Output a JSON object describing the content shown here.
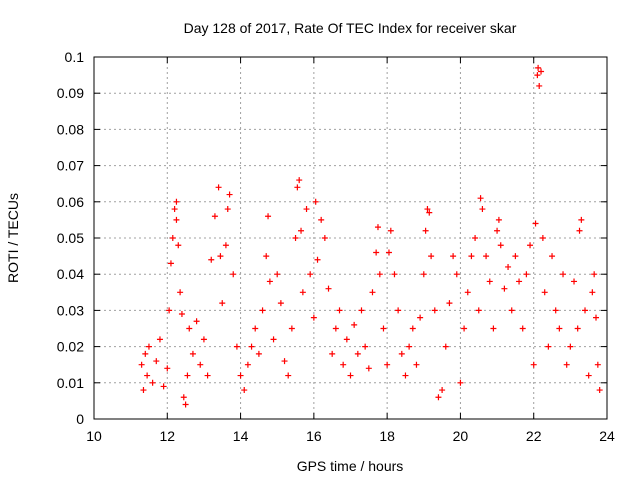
{
  "chart_data": {
    "type": "scatter",
    "title": "Day 128 of 2017, Rate Of TEC Index for receiver skar",
    "xlabel": "GPS time / hours",
    "ylabel": "ROTI / TECUs",
    "xlim": [
      10,
      24
    ],
    "ylim": [
      0,
      0.1
    ],
    "xticks": [
      "10",
      "12",
      "14",
      "16",
      "18",
      "20",
      "22",
      "24"
    ],
    "yticks": [
      "0",
      "0.01",
      "0.02",
      "0.03",
      "0.04",
      "0.05",
      "0.06",
      "0.07",
      "0.08",
      "0.09",
      "0.1"
    ],
    "grid": true,
    "marker": "+",
    "color": "#ff0000",
    "series": [
      {
        "points": [
          [
            11.3,
            0.015
          ],
          [
            11.35,
            0.008
          ],
          [
            11.4,
            0.018
          ],
          [
            11.45,
            0.012
          ],
          [
            11.5,
            0.02
          ],
          [
            11.6,
            0.01
          ],
          [
            11.7,
            0.016
          ],
          [
            11.8,
            0.022
          ],
          [
            11.9,
            0.009
          ],
          [
            12.0,
            0.014
          ],
          [
            12.05,
            0.03
          ],
          [
            12.1,
            0.043
          ],
          [
            12.15,
            0.05
          ],
          [
            12.2,
            0.058
          ],
          [
            12.25,
            0.06
          ],
          [
            12.25,
            0.055
          ],
          [
            12.3,
            0.048
          ],
          [
            12.35,
            0.035
          ],
          [
            12.4,
            0.029
          ],
          [
            12.45,
            0.006
          ],
          [
            12.5,
            0.004
          ],
          [
            12.55,
            0.012
          ],
          [
            12.6,
            0.025
          ],
          [
            12.7,
            0.018
          ],
          [
            12.8,
            0.027
          ],
          [
            12.9,
            0.015
          ],
          [
            13.0,
            0.022
          ],
          [
            13.1,
            0.012
          ],
          [
            13.2,
            0.044
          ],
          [
            13.3,
            0.056
          ],
          [
            13.4,
            0.064
          ],
          [
            13.45,
            0.045
          ],
          [
            13.5,
            0.032
          ],
          [
            13.6,
            0.048
          ],
          [
            13.65,
            0.058
          ],
          [
            13.7,
            0.062
          ],
          [
            13.8,
            0.04
          ],
          [
            13.9,
            0.02
          ],
          [
            14.0,
            0.012
          ],
          [
            14.1,
            0.008
          ],
          [
            14.2,
            0.015
          ],
          [
            14.3,
            0.02
          ],
          [
            14.4,
            0.025
          ],
          [
            14.5,
            0.018
          ],
          [
            14.6,
            0.03
          ],
          [
            14.7,
            0.045
          ],
          [
            14.75,
            0.056
          ],
          [
            14.8,
            0.038
          ],
          [
            14.9,
            0.022
          ],
          [
            15.0,
            0.04
          ],
          [
            15.1,
            0.032
          ],
          [
            15.2,
            0.016
          ],
          [
            15.3,
            0.012
          ],
          [
            15.4,
            0.025
          ],
          [
            15.5,
            0.05
          ],
          [
            15.55,
            0.064
          ],
          [
            15.6,
            0.066
          ],
          [
            15.65,
            0.052
          ],
          [
            15.7,
            0.035
          ],
          [
            15.8,
            0.058
          ],
          [
            15.9,
            0.04
          ],
          [
            16.0,
            0.028
          ],
          [
            16.05,
            0.06
          ],
          [
            16.1,
            0.044
          ],
          [
            16.2,
            0.055
          ],
          [
            16.3,
            0.05
          ],
          [
            16.4,
            0.036
          ],
          [
            16.5,
            0.018
          ],
          [
            16.6,
            0.025
          ],
          [
            16.7,
            0.03
          ],
          [
            16.8,
            0.015
          ],
          [
            16.9,
            0.022
          ],
          [
            17.0,
            0.012
          ],
          [
            17.1,
            0.026
          ],
          [
            17.2,
            0.018
          ],
          [
            17.3,
            0.03
          ],
          [
            17.4,
            0.02
          ],
          [
            17.5,
            0.014
          ],
          [
            17.6,
            0.035
          ],
          [
            17.7,
            0.046
          ],
          [
            17.75,
            0.053
          ],
          [
            17.8,
            0.04
          ],
          [
            17.9,
            0.025
          ],
          [
            18.0,
            0.015
          ],
          [
            18.05,
            0.046
          ],
          [
            18.1,
            0.052
          ],
          [
            18.2,
            0.04
          ],
          [
            18.3,
            0.03
          ],
          [
            18.4,
            0.018
          ],
          [
            18.5,
            0.012
          ],
          [
            18.6,
            0.02
          ],
          [
            18.7,
            0.025
          ],
          [
            18.8,
            0.015
          ],
          [
            18.9,
            0.028
          ],
          [
            19.0,
            0.04
          ],
          [
            19.05,
            0.052
          ],
          [
            19.1,
            0.058
          ],
          [
            19.15,
            0.057
          ],
          [
            19.2,
            0.045
          ],
          [
            19.3,
            0.03
          ],
          [
            19.4,
            0.006
          ],
          [
            19.5,
            0.008
          ],
          [
            19.6,
            0.02
          ],
          [
            19.7,
            0.032
          ],
          [
            19.8,
            0.045
          ],
          [
            19.9,
            0.04
          ],
          [
            20.0,
            0.01
          ],
          [
            20.1,
            0.025
          ],
          [
            20.2,
            0.035
          ],
          [
            20.3,
            0.045
          ],
          [
            20.4,
            0.05
          ],
          [
            20.5,
            0.03
          ],
          [
            20.55,
            0.061
          ],
          [
            20.6,
            0.058
          ],
          [
            20.7,
            0.045
          ],
          [
            20.8,
            0.038
          ],
          [
            20.9,
            0.025
          ],
          [
            21.0,
            0.052
          ],
          [
            21.05,
            0.055
          ],
          [
            21.1,
            0.048
          ],
          [
            21.2,
            0.036
          ],
          [
            21.3,
            0.042
          ],
          [
            21.4,
            0.03
          ],
          [
            21.5,
            0.045
          ],
          [
            21.6,
            0.038
          ],
          [
            21.7,
            0.025
          ],
          [
            21.8,
            0.04
          ],
          [
            21.9,
            0.048
          ],
          [
            22.0,
            0.015
          ],
          [
            22.05,
            0.054
          ],
          [
            22.1,
            0.095
          ],
          [
            22.12,
            0.097
          ],
          [
            22.15,
            0.092
          ],
          [
            22.2,
            0.096
          ],
          [
            22.25,
            0.05
          ],
          [
            22.3,
            0.035
          ],
          [
            22.4,
            0.02
          ],
          [
            22.5,
            0.045
          ],
          [
            22.6,
            0.03
          ],
          [
            22.7,
            0.025
          ],
          [
            22.8,
            0.04
          ],
          [
            22.9,
            0.015
          ],
          [
            23.0,
            0.02
          ],
          [
            23.1,
            0.038
          ],
          [
            23.2,
            0.025
          ],
          [
            23.25,
            0.052
          ],
          [
            23.3,
            0.055
          ],
          [
            23.4,
            0.03
          ],
          [
            23.5,
            0.012
          ],
          [
            23.6,
            0.035
          ],
          [
            23.65,
            0.04
          ],
          [
            23.7,
            0.028
          ],
          [
            23.75,
            0.015
          ],
          [
            23.8,
            0.008
          ]
        ]
      }
    ]
  }
}
